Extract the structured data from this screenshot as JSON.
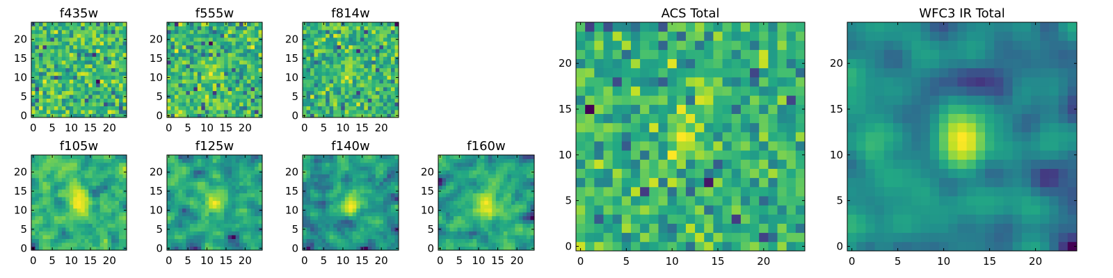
{
  "chart_data": [
    {
      "type": "heatmap",
      "title": "f435w",
      "grid_size": 25,
      "xticks": [
        0,
        5,
        10,
        15,
        20
      ],
      "yticks": [
        0,
        5,
        10,
        15,
        20
      ],
      "xlim": [
        -0.5,
        24.5
      ],
      "ylim": [
        -0.5,
        24.5
      ],
      "colormap": "viridis",
      "seed": 11,
      "signal": 0.15,
      "smooth": 0
    },
    {
      "type": "heatmap",
      "title": "f555w",
      "grid_size": 25,
      "xticks": [
        0,
        5,
        10,
        15,
        20
      ],
      "yticks": [
        0,
        5,
        10,
        15,
        20
      ],
      "xlim": [
        -0.5,
        24.5
      ],
      "ylim": [
        -0.5,
        24.5
      ],
      "colormap": "viridis",
      "seed": 23,
      "signal": 0.25,
      "smooth": 0
    },
    {
      "type": "heatmap",
      "title": "f814w",
      "grid_size": 25,
      "xticks": [
        0,
        5,
        10,
        15,
        20
      ],
      "yticks": [
        0,
        5,
        10,
        15,
        20
      ],
      "xlim": [
        -0.5,
        24.5
      ],
      "ylim": [
        -0.5,
        24.5
      ],
      "colormap": "viridis",
      "seed": 37,
      "signal": 0.45,
      "smooth": 0
    },
    {
      "type": "heatmap",
      "title": "f105w",
      "grid_size": 25,
      "xticks": [
        0,
        5,
        10,
        15,
        20
      ],
      "yticks": [
        0,
        5,
        10,
        15,
        20
      ],
      "xlim": [
        -0.5,
        24.5
      ],
      "ylim": [
        -0.5,
        24.5
      ],
      "colormap": "viridis",
      "seed": 41,
      "signal": 0.6,
      "smooth": 1
    },
    {
      "type": "heatmap",
      "title": "f125w",
      "grid_size": 25,
      "xticks": [
        0,
        5,
        10,
        15,
        20
      ],
      "yticks": [
        0,
        5,
        10,
        15,
        20
      ],
      "xlim": [
        -0.5,
        24.5
      ],
      "ylim": [
        -0.5,
        24.5
      ],
      "colormap": "viridis",
      "seed": 53,
      "signal": 0.55,
      "smooth": 1
    },
    {
      "type": "heatmap",
      "title": "f140w",
      "grid_size": 25,
      "xticks": [
        0,
        5,
        10,
        15,
        20
      ],
      "yticks": [
        0,
        5,
        10,
        15,
        20
      ],
      "xlim": [
        -0.5,
        24.5
      ],
      "ylim": [
        -0.5,
        24.5
      ],
      "colormap": "viridis",
      "seed": 67,
      "signal": 0.6,
      "smooth": 1
    },
    {
      "type": "heatmap",
      "title": "f160w",
      "grid_size": 25,
      "xticks": [
        0,
        5,
        10,
        15,
        20
      ],
      "yticks": [
        0,
        5,
        10,
        15,
        20
      ],
      "xlim": [
        -0.5,
        24.5
      ],
      "ylim": [
        -0.5,
        24.5
      ],
      "colormap": "viridis",
      "seed": 79,
      "signal": 0.6,
      "smooth": 1
    },
    {
      "type": "heatmap",
      "title": "ACS Total",
      "grid_size": 25,
      "xticks": [
        0,
        5,
        10,
        15,
        20
      ],
      "yticks": [
        0,
        5,
        10,
        15,
        20
      ],
      "xlim": [
        -0.5,
        24.5
      ],
      "ylim": [
        -0.5,
        24.5
      ],
      "colormap": "viridis",
      "seed": 83,
      "signal": 0.55,
      "smooth": 0
    },
    {
      "type": "heatmap",
      "title": "WFC3 IR Total",
      "grid_size": 25,
      "xticks": [
        0,
        5,
        10,
        15,
        20
      ],
      "yticks": [
        0,
        5,
        10,
        15,
        20
      ],
      "xlim": [
        -0.5,
        24.5
      ],
      "ylim": [
        -0.5,
        24.5
      ],
      "colormap": "viridis",
      "seed": 97,
      "signal": 0.85,
      "smooth": 2
    }
  ]
}
